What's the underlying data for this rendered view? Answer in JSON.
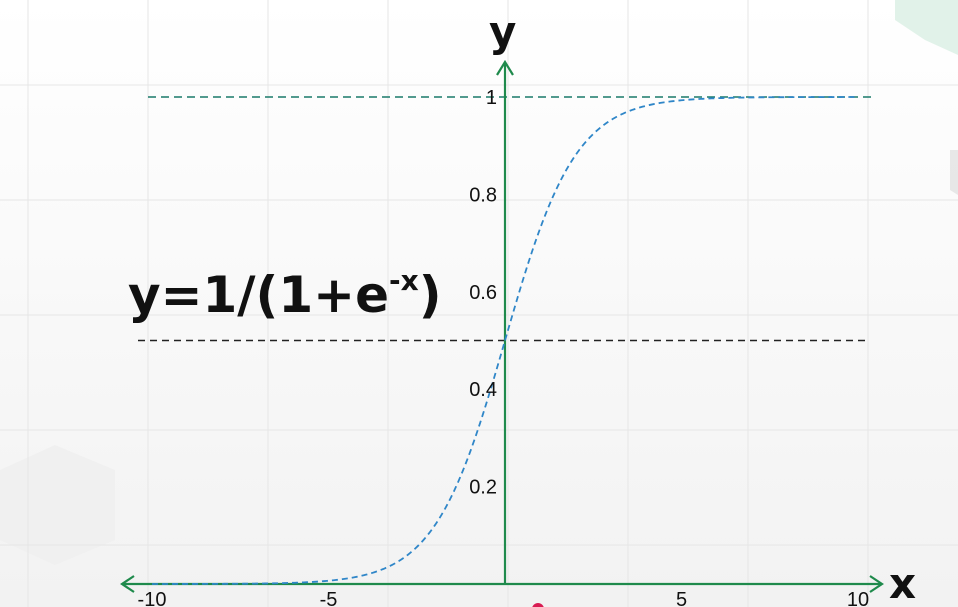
{
  "chart_data": {
    "type": "line",
    "title": "",
    "equation": {
      "prefix": "y=1/(1+e",
      "superscript": "-x",
      "suffix": ")"
    },
    "xlabel": "x",
    "ylabel": "y",
    "xlim": [
      -10,
      10
    ],
    "ylim": [
      0,
      1
    ],
    "x_ticks": [
      {
        "value": -10,
        "label": "-10"
      },
      {
        "value": -5,
        "label": "-5"
      },
      {
        "value": 5,
        "label": "5"
      },
      {
        "value": 10,
        "label": "10"
      }
    ],
    "y_ticks": [
      {
        "value": 0.2,
        "label": "0.2"
      },
      {
        "value": 0.4,
        "label": "0.4"
      },
      {
        "value": 0.6,
        "label": "0.6"
      },
      {
        "value": 0.8,
        "label": "0.8"
      },
      {
        "value": 1,
        "label": "1"
      }
    ],
    "reference_lines": [
      {
        "name": "upper-asymptote",
        "y": 1,
        "color": "#1a7a6a"
      },
      {
        "name": "midline",
        "y": 0.5,
        "color": "#222222"
      }
    ],
    "series": [
      {
        "name": "sigmoid",
        "function": "1/(1+e^-x)",
        "style": "dashed",
        "color": "#2f86c8",
        "x": [
          -10,
          -8,
          -6,
          -5,
          -4,
          -3,
          -2,
          -1,
          0,
          1,
          2,
          3,
          4,
          5,
          6,
          8,
          10
        ],
        "y": [
          4.54e-05,
          0.000335,
          0.00247,
          0.00669,
          0.018,
          0.0474,
          0.119,
          0.269,
          0.5,
          0.731,
          0.881,
          0.953,
          0.982,
          0.993,
          0.998,
          0.9997,
          0.99995
        ]
      }
    ],
    "grid": true,
    "axis_color": "#1f8a4c",
    "annotation_color": "#d81b52"
  }
}
